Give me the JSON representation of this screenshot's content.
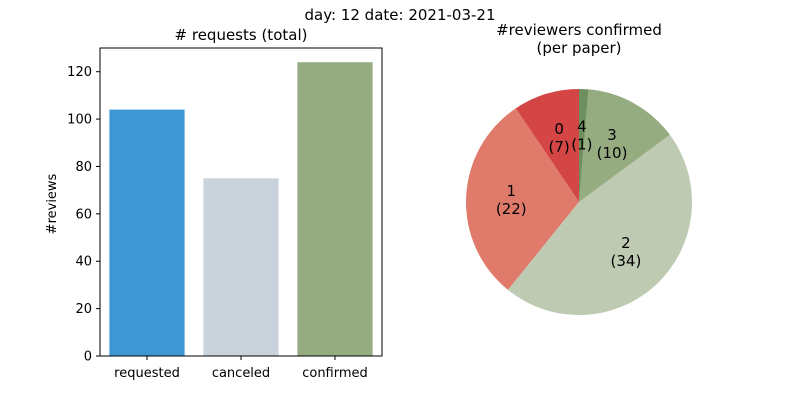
{
  "suptitle": "day: 12   date: 2021-03-21",
  "chart_data": [
    {
      "type": "bar",
      "title": "# requests (total)",
      "ylabel": "#reviews",
      "xlabel": "",
      "categories": [
        "requested",
        "canceled",
        "confirmed"
      ],
      "values": [
        104,
        75,
        124
      ],
      "colors": [
        "#3e97d5",
        "#c9d3db",
        "#95ac80"
      ],
      "ylim": [
        0,
        130
      ],
      "yticks": [
        0,
        20,
        40,
        60,
        80,
        100,
        120
      ],
      "grid": false
    },
    {
      "type": "pie",
      "title_lines": [
        "#reviewers confirmed",
        "(per paper)"
      ],
      "labels": [
        "0",
        "1",
        "2",
        "3",
        "4"
      ],
      "counts": [
        "(7)",
        "(22)",
        "(34)",
        "(10)",
        "(1)"
      ],
      "values": [
        7,
        22,
        34,
        10,
        1
      ],
      "colors": [
        "#d44545",
        "#e07b6c",
        "#bfcab3",
        "#95ac80",
        "#6e905e"
      ],
      "start_angle_deg": 90,
      "direction": "counterclockwise"
    }
  ]
}
